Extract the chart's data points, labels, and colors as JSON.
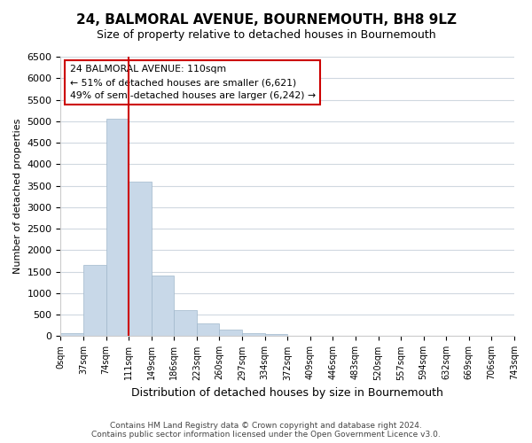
{
  "title": "24, BALMORAL AVENUE, BOURNEMOUTH, BH8 9LZ",
  "subtitle": "Size of property relative to detached houses in Bournemouth",
  "xlabel": "Distribution of detached houses by size in Bournemouth",
  "ylabel": "Number of detached properties",
  "bar_values": [
    75,
    1650,
    5050,
    3600,
    1420,
    610,
    300,
    150,
    75,
    50,
    0,
    0,
    0,
    0,
    0,
    0,
    0,
    0,
    0,
    0
  ],
  "bin_labels": [
    "0sqm",
    "37sqm",
    "74sqm",
    "111sqm",
    "149sqm",
    "186sqm",
    "223sqm",
    "260sqm",
    "297sqm",
    "334sqm",
    "372sqm",
    "409sqm",
    "446sqm",
    "483sqm",
    "520sqm",
    "557sqm",
    "594sqm",
    "632sqm",
    "669sqm",
    "706sqm",
    "743sqm"
  ],
  "bar_color": "#c8d8e8",
  "bar_edge_color": "#a0b8cc",
  "vline_color": "#cc0000",
  "vline_x": 3.0,
  "annotation_text": "24 BALMORAL AVENUE: 110sqm\n← 51% of detached houses are smaller (6,621)\n49% of semi-detached houses are larger (6,242) →",
  "annotation_box_color": "#ffffff",
  "annotation_box_edge": "#cc0000",
  "ylim": [
    0,
    6500
  ],
  "yticks": [
    0,
    500,
    1000,
    1500,
    2000,
    2500,
    3000,
    3500,
    4000,
    4500,
    5000,
    5500,
    6000,
    6500
  ],
  "footer_line1": "Contains HM Land Registry data © Crown copyright and database right 2024.",
  "footer_line2": "Contains public sector information licensed under the Open Government Licence v3.0.",
  "background_color": "#ffffff",
  "grid_color": "#d0d8e0"
}
